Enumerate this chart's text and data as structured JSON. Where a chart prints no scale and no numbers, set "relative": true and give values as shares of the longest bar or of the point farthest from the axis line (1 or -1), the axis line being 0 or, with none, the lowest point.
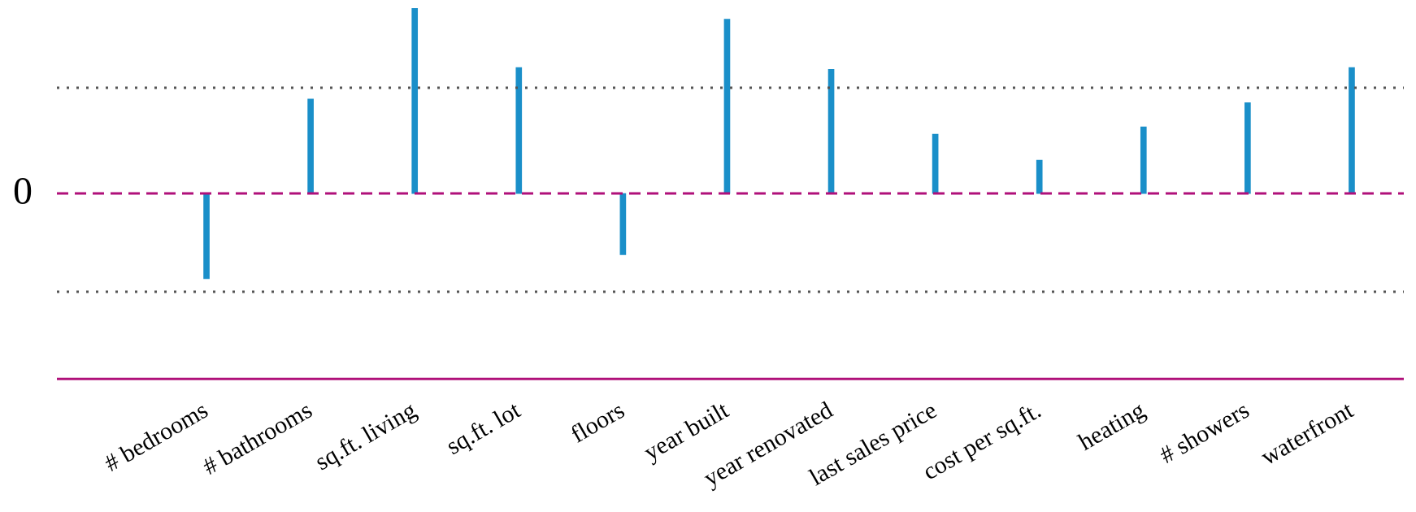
{
  "chart_data": {
    "type": "bar",
    "relative": true,
    "categories": [
      "# bedrooms",
      "# bathrooms",
      "sq.ft. living",
      "sq.ft. lot",
      "floors",
      "year built",
      "year renovated",
      "last sales price",
      "cost per sq.ft.",
      "heating",
      "# showers",
      "waterfront"
    ],
    "values": [
      -0.46,
      0.51,
      1,
      0.68,
      -0.33,
      0.94,
      0.67,
      0.32,
      0.18,
      0.36,
      0.49,
      0.68
    ],
    "color": "#1a8fc9",
    "ref_lines": [
      {
        "axis": "y",
        "value": 0,
        "label": "0",
        "color": "#b0107a",
        "line_style": "dashed"
      },
      {
        "axis": "y",
        "value": 0.57,
        "label": null,
        "color": "#555555",
        "line_style": "dotted"
      },
      {
        "axis": "y",
        "value": -0.53,
        "label": null,
        "color": "#555555",
        "line_style": "dotted"
      }
    ],
    "grid": false,
    "legend": false
  }
}
